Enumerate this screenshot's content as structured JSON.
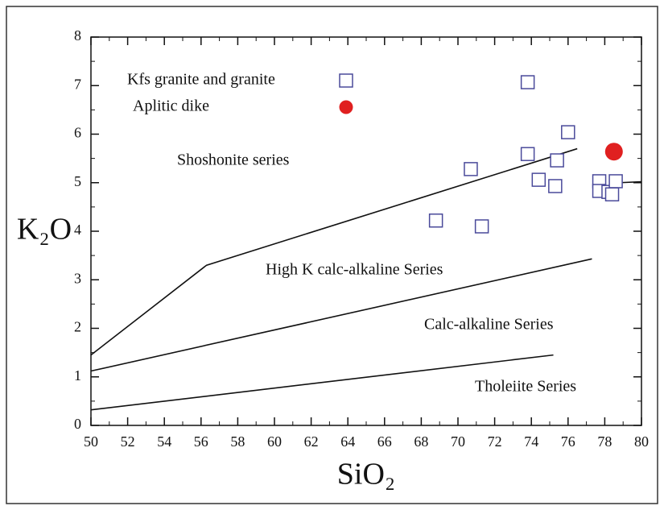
{
  "chart_data": {
    "type": "scatter",
    "x_label": "SiO₂",
    "y_label": "K₂O",
    "xlim": [
      50,
      80
    ],
    "ylim": [
      0,
      8
    ],
    "xticks": [
      50,
      52,
      54,
      56,
      58,
      60,
      62,
      64,
      66,
      68,
      70,
      72,
      74,
      76,
      78,
      80
    ],
    "yticks": [
      0,
      1,
      2,
      3,
      4,
      5,
      6,
      7,
      8
    ],
    "annotations": [
      "Shoshonite series",
      "High K calc-alkaline Series",
      "Calc-alkaline Series",
      "Tholeiite Series"
    ],
    "series": [
      {
        "name": "Kfs granite and granite",
        "color": "#4a4a9a",
        "marker": "square",
        "x": [
          68.8,
          71.3,
          70.7,
          73.8,
          73.8,
          74.4,
          75.4,
          75.3,
          76.0,
          77.7,
          77.7,
          78.2,
          78.4,
          78.6
        ],
        "y": [
          4.22,
          4.1,
          5.28,
          7.07,
          5.59,
          5.06,
          5.46,
          4.93,
          6.04,
          5.03,
          4.83,
          4.81,
          4.76,
          5.03
        ]
      },
      {
        "name": "Aplitic dike",
        "color": "#e02020",
        "marker": "circle",
        "x": [
          78.5
        ],
        "y": [
          5.64
        ]
      }
    ],
    "boundaries": [
      {
        "x": [
          50,
          56.3,
          76.5
        ],
        "y": [
          1.45,
          3.3,
          5.7
        ]
      },
      {
        "x": [
          78.8,
          80
        ],
        "y": [
          5.0,
          5.02
        ]
      },
      {
        "x": [
          50,
          77.3
        ],
        "y": [
          1.12,
          3.43
        ]
      },
      {
        "x": [
          50,
          75.2
        ],
        "y": [
          0.32,
          1.45
        ]
      }
    ]
  }
}
